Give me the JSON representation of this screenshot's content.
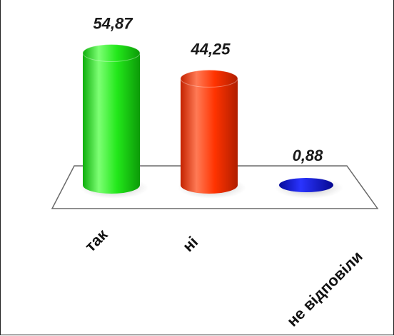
{
  "chart_data": {
    "type": "bar",
    "style": "3d-cylinder",
    "categories": [
      "так",
      "ні",
      "не відповіли"
    ],
    "values": [
      54.87,
      44.25,
      0.88
    ],
    "value_labels": [
      "54,87",
      "44,25",
      "0,88"
    ],
    "colors": [
      "#22e81a",
      "#ff3300",
      "#0a10d8"
    ],
    "ylim": [
      0,
      60
    ],
    "grid": false,
    "legend": "none"
  }
}
